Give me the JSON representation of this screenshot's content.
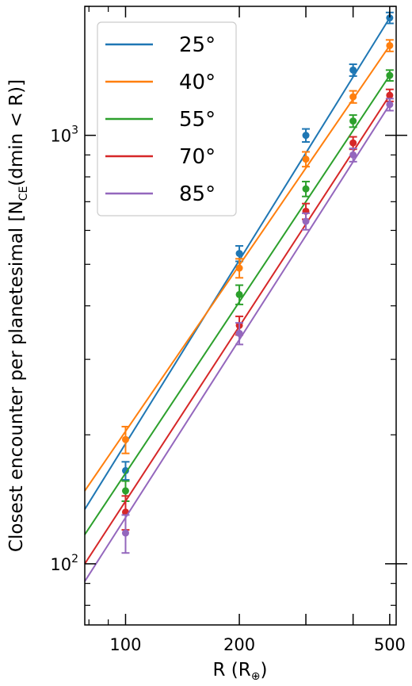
{
  "chart_data": {
    "type": "line",
    "xlabel": "R (R⊕)",
    "ylabel": "Closest encounter per planetesimal [N_CE(dmin < R)]",
    "xscale": "log",
    "yscale": "log",
    "xlim": [
      78,
      520
    ],
    "ylim": [
      72,
      2000
    ],
    "x_ticks": [
      100,
      200,
      300,
      400,
      500
    ],
    "x_tick_labels": [
      "100",
      "200",
      "",
      "",
      "500"
    ],
    "y_ticks": [
      100,
      1000
    ],
    "y_tick_labels": [
      {
        "base": "10",
        "exp": "2"
      },
      {
        "base": "10",
        "exp": "3"
      }
    ],
    "grid": false,
    "legend_position": "top-left",
    "x": [
      100,
      200,
      300,
      400,
      500
    ],
    "series": [
      {
        "name": "25°",
        "color": "#1f77b4",
        "values": [
          165,
          530,
          1000,
          1420,
          1880
        ],
        "err": [
          8,
          22,
          35,
          45,
          55
        ],
        "fit": [
          {
            "x": 78,
            "y": 134
          },
          {
            "x": 500,
            "y": 1880
          }
        ]
      },
      {
        "name": "40°",
        "color": "#ff7f0e",
        "values": [
          195,
          490,
          880,
          1230,
          1620
        ],
        "err": [
          14,
          25,
          35,
          40,
          50
        ],
        "fit": [
          {
            "x": 78,
            "y": 148
          },
          {
            "x": 500,
            "y": 1620
          }
        ]
      },
      {
        "name": "55°",
        "color": "#2ca02c",
        "values": [
          148,
          425,
          750,
          1080,
          1380
        ],
        "err": [
          8,
          22,
          30,
          35,
          40
        ],
        "fit": [
          {
            "x": 78,
            "y": 117
          },
          {
            "x": 500,
            "y": 1380
          }
        ]
      },
      {
        "name": "70°",
        "color": "#d62728",
        "values": [
          132,
          360,
          665,
          960,
          1240
        ],
        "err": [
          12,
          18,
          28,
          32,
          40
        ],
        "fit": [
          {
            "x": 78,
            "y": 100
          },
          {
            "x": 500,
            "y": 1240
          }
        ]
      },
      {
        "name": "85°",
        "color": "#9467bd",
        "values": [
          118,
          345,
          630,
          900,
          1180
        ],
        "err": [
          12,
          20,
          28,
          32,
          38
        ],
        "fit": [
          {
            "x": 78,
            "y": 91
          },
          {
            "x": 500,
            "y": 1180
          }
        ]
      }
    ]
  }
}
